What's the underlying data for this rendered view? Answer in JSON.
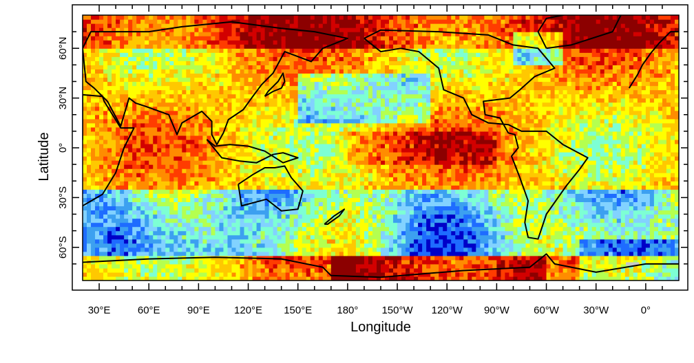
{
  "chart_data": {
    "type": "heatmap",
    "title": "",
    "xlabel": "Longitude",
    "ylabel": "Latitude",
    "x_ticks": [
      "30°E",
      "60°E",
      "90°E",
      "120°E",
      "150°E",
      "180°",
      "150°W",
      "120°W",
      "90°W",
      "60°W",
      "30°W",
      "0°"
    ],
    "x_tick_values": [
      30,
      60,
      90,
      120,
      150,
      180,
      210,
      240,
      270,
      300,
      330,
      360
    ],
    "y_ticks": [
      "60°N",
      "30°N",
      "0°",
      "30°S",
      "60°S"
    ],
    "y_tick_values": [
      60,
      30,
      0,
      -30,
      -60
    ],
    "xlim": [
      20,
      380
    ],
    "ylim": [
      -80,
      80
    ],
    "grid": false,
    "legend": "none",
    "colormap": [
      "#0000c8",
      "#1e6cff",
      "#3ca0f0",
      "#82d2ff",
      "#7dffd4",
      "#b4ff50",
      "#ffff00",
      "#ffc800",
      "#ff8c00",
      "#ff3c00",
      "#d20000",
      "#8c0000"
    ],
    "missing_color": "#c8c8c8",
    "coastline_color": "#000000"
  }
}
